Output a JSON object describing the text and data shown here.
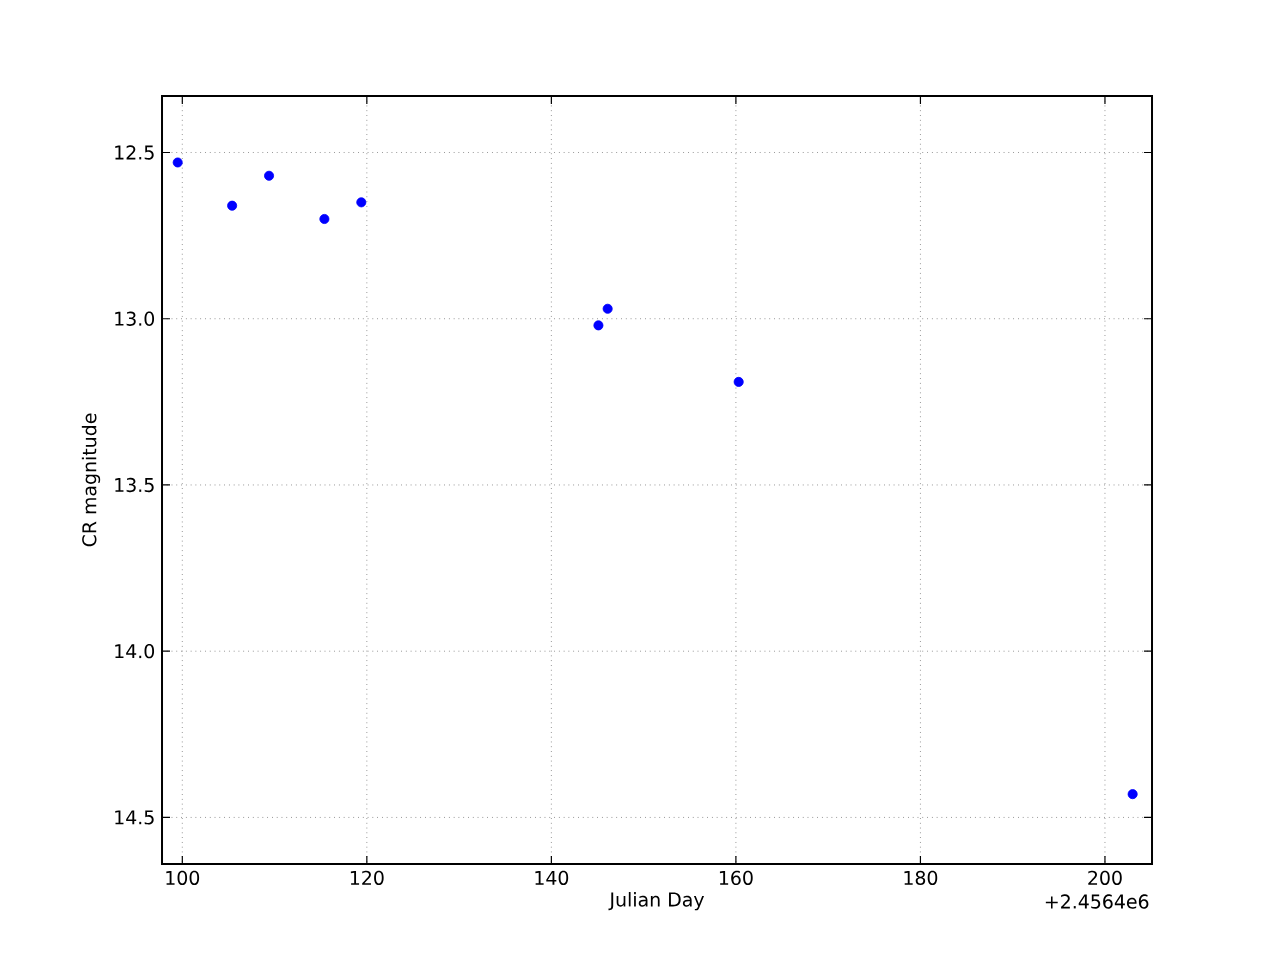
{
  "chart_data": {
    "type": "scatter",
    "xlabel": "Julian Day",
    "ylabel": "CR magnitude",
    "annotations": [
      "+2.4564e6"
    ],
    "x": [
      99.5,
      105.4,
      109.4,
      115.4,
      119.4,
      145.1,
      146.1,
      160.3,
      203.0
    ],
    "series": [
      {
        "color": "#0000ff",
        "values": [
          12.53,
          12.66,
          12.57,
          12.7,
          12.65,
          13.02,
          12.97,
          13.19,
          14.43
        ]
      }
    ],
    "xlim": [
      97.8,
      205.1
    ],
    "ylim": [
      14.64,
      12.33
    ],
    "xticks": [
      100,
      120,
      140,
      160,
      180,
      200
    ],
    "yticks": [
      12.5,
      {
        "value": 13,
        "label": "13.0"
      },
      13.5,
      {
        "value": 14,
        "label": "14.0"
      },
      14.5
    ],
    "grid": true,
    "marker": "circle"
  }
}
